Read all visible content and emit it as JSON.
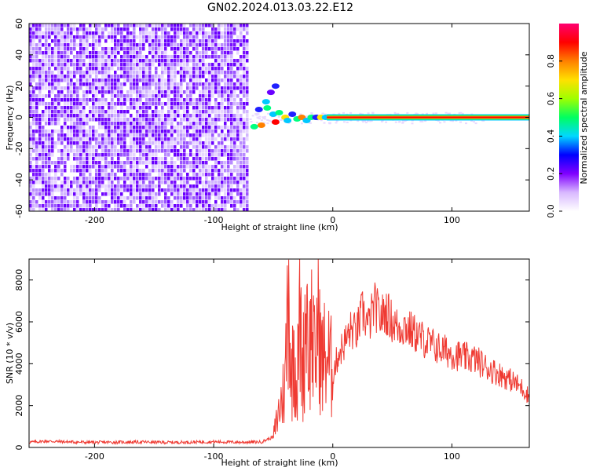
{
  "title": "GN02.2024.013.03.22.E12",
  "spectrogram": {
    "type": "heatmap",
    "xlabel": "Height of straight line (km)",
    "ylabel": "Frequency (Hz)",
    "xlim": [
      -255,
      165
    ],
    "ylim": [
      -60,
      60
    ],
    "xticks": [
      -200,
      -100,
      0,
      100
    ],
    "yticks": [
      -60,
      -40,
      -20,
      0,
      20,
      40,
      60
    ],
    "noise_region_x": [
      -255,
      -70
    ],
    "signal_line_y": 0,
    "colorbar": {
      "label": "Normalized spectral amplitude",
      "ticks": [
        0.0,
        0.2,
        0.4,
        0.6,
        0.8
      ],
      "range": [
        0,
        1
      ],
      "colors": [
        "#ffffff",
        "#d8b8ff",
        "#8000ff",
        "#0000ff",
        "#00d8ff",
        "#00ff60",
        "#a0ff00",
        "#ffe000",
        "#ff8000",
        "#ff0000",
        "#ff0070"
      ]
    }
  },
  "chart_data": {
    "type": "line",
    "xlabel": "Height of straight line (km)",
    "ylabel": "SNR (10 * v/v)",
    "xlim": [
      -255,
      165
    ],
    "ylim": [
      0,
      9000
    ],
    "xticks": [
      -200,
      -100,
      0,
      100
    ],
    "yticks": [
      0,
      2000,
      4000,
      6000,
      8000
    ],
    "color": "#ef3a32",
    "series": [
      {
        "x": [
          -255,
          -240,
          -220,
          -200,
          -180,
          -160,
          -140,
          -120,
          -100,
          -80,
          -60,
          -50,
          -45,
          -40,
          -37,
          -35,
          -33,
          -30,
          -28,
          -25,
          -22,
          -20,
          -18,
          -15,
          -12,
          -10,
          -5,
          0,
          5,
          10,
          15,
          20,
          25,
          30,
          35,
          40,
          45,
          50,
          55,
          60,
          70,
          80,
          90,
          100,
          110,
          120,
          130,
          140,
          150,
          160,
          165
        ],
        "y": [
          250,
          300,
          260,
          240,
          250,
          260,
          240,
          250,
          270,
          250,
          260,
          500,
          1800,
          3000,
          9000,
          2500,
          5500,
          2500,
          6500,
          3500,
          7500,
          4000,
          6000,
          3800,
          7000,
          4000,
          4500,
          3500,
          4500,
          5000,
          5600,
          5500,
          6500,
          5800,
          6800,
          6200,
          6500,
          6000,
          5700,
          5800,
          5400,
          5000,
          4700,
          4500,
          4300,
          4200,
          3800,
          3500,
          3200,
          2800,
          2400
        ]
      }
    ]
  }
}
